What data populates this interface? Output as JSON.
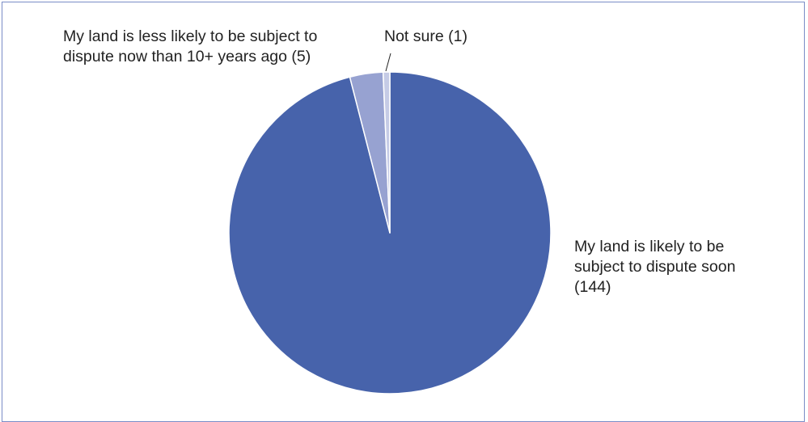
{
  "chart_data": {
    "type": "pie",
    "title": "",
    "start_angle_deg": 0,
    "direction": "clockwise",
    "slices": [
      {
        "label": "My land is likely to be subject to dispute soon",
        "count": "(144)",
        "value": 144,
        "color": "#4763ab"
      },
      {
        "label": "My land is less likely to be subject to dispute now than 10+ years ago",
        "count": "(5)",
        "value": 5,
        "color": "#97a2d1"
      },
      {
        "label": "Not sure",
        "count": "(1)",
        "value": 1,
        "color": "#c5cbe6"
      }
    ],
    "label_lines": {
      "s0": [
        "My land is likely to be",
        "subject to dispute soon",
        "(144)"
      ],
      "s1": [
        "My land is less likely to be subject to",
        "dispute now than 10+ years ago (5)"
      ],
      "s2": [
        "Not sure (1)"
      ]
    }
  }
}
